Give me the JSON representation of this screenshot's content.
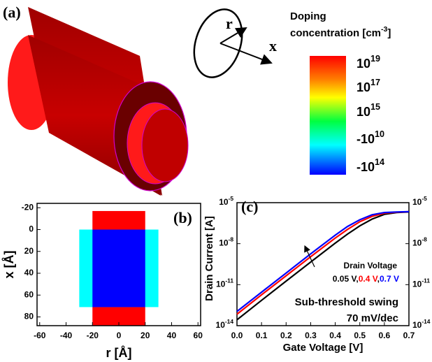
{
  "panel_a": {
    "label": "(a)",
    "axis_r": "r",
    "axis_x": "x",
    "colorbar": {
      "title_line1": "Doping",
      "title_line2": "concentration [cm",
      "title_exponent": "-3",
      "title_close": "]",
      "ticks": [
        {
          "base": "10",
          "exponent": "19"
        },
        {
          "base": "10",
          "exponent": "17"
        },
        {
          "base": "10",
          "exponent": "15"
        },
        {
          "base": "-10",
          "exponent": "10"
        },
        {
          "base": "-10",
          "exponent": "14"
        }
      ]
    }
  },
  "chart_data": [
    {
      "type": "region",
      "label": "(b)",
      "x_label": "r [Å]",
      "y_label": "x [Å]",
      "xlim": [
        -62,
        62
      ],
      "xticks": [
        -60,
        -40,
        -20,
        0,
        20,
        40,
        60
      ],
      "ylim": [
        -24,
        88
      ],
      "yticks": [
        -20,
        0,
        20,
        40,
        60,
        80
      ],
      "y_inverted": true,
      "regions": [
        {
          "color": "#ff0000",
          "r": [
            -20,
            20
          ],
          "x": [
            -17,
            88
          ]
        },
        {
          "color": "#00ffff",
          "r": [
            -30,
            30
          ],
          "x": [
            0,
            71
          ]
        },
        {
          "color": "#0000ff",
          "r": [
            -20,
            20
          ],
          "x": [
            0,
            71
          ]
        }
      ]
    },
    {
      "type": "line",
      "label": "(c)",
      "x_label": "Gate Voltage [V]",
      "y_label": "Drain Current [A]",
      "log_y": true,
      "xlim": [
        0,
        0.7
      ],
      "xticks": [
        {
          "value": 0,
          "label": "0.0"
        },
        0.1,
        0.2,
        0.3,
        0.4,
        0.5,
        0.6,
        0.7
      ],
      "ylim": [
        1e-14,
        1e-05
      ],
      "yticks": [
        {
          "value": 1e-14,
          "label": "10",
          "exponent": "-14"
        },
        {
          "value": 1e-11,
          "label": "10",
          "exponent": "-11"
        },
        {
          "value": 1e-08,
          "label": "10",
          "exponent": "-8"
        },
        {
          "value": 1e-05,
          "label": "10",
          "exponent": "-5"
        }
      ],
      "y2lim": [
        1e-14,
        1e-05
      ],
      "y2ticks": [
        {
          "value": 1e-14,
          "label": "10",
          "exponent": "-14"
        },
        {
          "value": 1e-11,
          "label": "10",
          "exponent": "-11"
        },
        {
          "value": 1e-08,
          "label": "10",
          "exponent": "-8"
        },
        {
          "value": 1e-05,
          "label": "10",
          "exponent": "-5"
        }
      ],
      "x": [
        0,
        0.1,
        0.2,
        0.3,
        0.4,
        0.45,
        0.5,
        0.55,
        0.6,
        0.65,
        0.7
      ],
      "series": [
        {
          "name": "0.05 V",
          "color": "#000000",
          "values": [
            2.7e-14,
            7.1e-13,
            1.8e-11,
            4.5e-10,
            1.1e-08,
            5e-08,
            2e-07,
            6.3e-07,
            1.4e-06,
            1.9e-06,
            2.1e-06
          ]
        },
        {
          "name": "0.4 V",
          "color": "#ff0000",
          "values": [
            6.9e-14,
            1.8e-12,
            4.5e-11,
            1.1e-09,
            2.6e-08,
            1.1e-07,
            4e-07,
            1e-06,
            1.7e-06,
            2e-06,
            2.2e-06
          ]
        },
        {
          "name": "0.7 V",
          "color": "#0000ff",
          "values": [
            1.1e-13,
            2.8e-12,
            7.1e-11,
            1.8e-09,
            4.2e-08,
            1.8e-07,
            5.6e-07,
            1.3e-06,
            1.9e-06,
            2.1e-06,
            2.2e-06
          ]
        }
      ],
      "legend_title": "Drain Voltage",
      "legend_separator": ",",
      "annotations": [
        "Sub-threshold swing",
        "70 mV/dec"
      ]
    }
  ]
}
